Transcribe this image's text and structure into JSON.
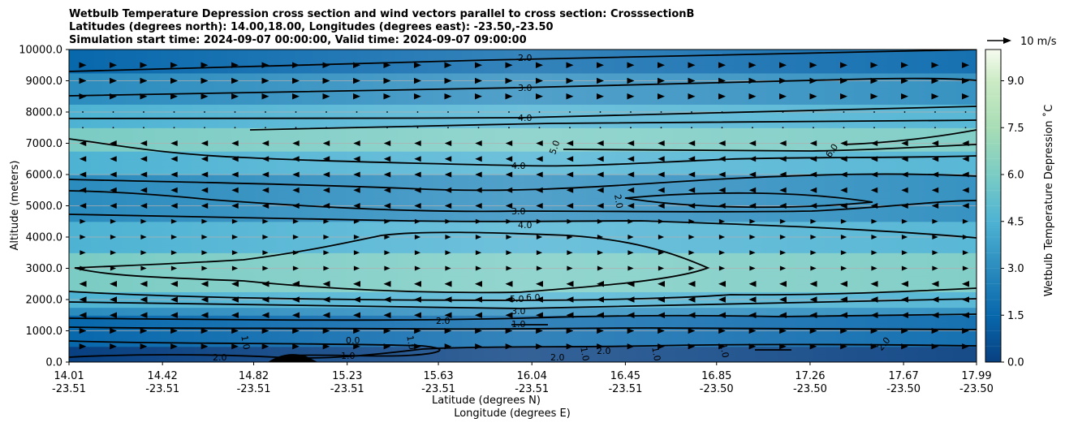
{
  "chart_data": {
    "type": "heatmap",
    "title_lines": [
      "Wetbulb Temperature Depression cross section and wind vectors parallel to cross section: CrosssectionB",
      "Latitudes (degrees north): 14.00,18.00, Longitudes (degrees east): -23.50,-23.50",
      "Simulation start time: 2024-09-07 00:00:00, Valid time: 2024-09-07 09:00:00"
    ],
    "ylabel": "Altitude (meters)",
    "xlabel_lines": [
      "Latitude (degrees N)",
      "Longitude (degrees E)"
    ],
    "colorbar_label": "Wetbulb Temperature Depression ˚C",
    "quiver_key_label": "10 m/s",
    "ylim": [
      0,
      10000
    ],
    "yticks": [
      "0.0",
      "1000.0",
      "2000.0",
      "3000.0",
      "4000.0",
      "5000.0",
      "6000.0",
      "7000.0",
      "8000.0",
      "9000.0",
      "10000.0"
    ],
    "xtick_lat": [
      "14.01",
      "14.42",
      "14.82",
      "15.23",
      "15.63",
      "16.04",
      "16.45",
      "16.85",
      "17.26",
      "17.67",
      "17.99"
    ],
    "xtick_lon": [
      "-23.51",
      "-23.51",
      "-23.51",
      "-23.51",
      "-23.51",
      "-23.51",
      "-23.51",
      "-23.50",
      "-23.50",
      "-23.50",
      "-23.50"
    ],
    "colorbar_range": [
      0,
      10
    ],
    "colorbar_ticks": [
      "0.0",
      "1.5",
      "3.0",
      "4.5",
      "6.0",
      "7.5",
      "9.0"
    ],
    "contour_labels": [
      "2.0",
      "3.0",
      "4.0",
      "4.0",
      "5.0",
      "6.0",
      "2.0",
      "3.0",
      "4.0",
      "5.0",
      "6.0",
      "3.0",
      "2.0",
      "1.0",
      "0.0",
      "1.0",
      "1.0",
      "2.0",
      "1.0",
      "2.0",
      "1.0",
      "1.0",
      "2.0",
      "1.0",
      "2.0"
    ],
    "profile": [
      {
        "altitude": 0,
        "value": 1.0
      },
      {
        "altitude": 1000,
        "value": 1.5
      },
      {
        "altitude": 1500,
        "value": 2.5
      },
      {
        "altitude": 2000,
        "value": 4.5
      },
      {
        "altitude": 3000,
        "value": 5.5
      },
      {
        "altitude": 4000,
        "value": 4.3
      },
      {
        "altitude": 5000,
        "value": 2.5
      },
      {
        "altitude": 6000,
        "value": 3.5
      },
      {
        "altitude": 7000,
        "value": 5.5
      },
      {
        "altitude": 8000,
        "value": 4.0
      },
      {
        "altitude": 9000,
        "value": 2.5
      },
      {
        "altitude": 10000,
        "value": 1.8
      }
    ],
    "grid": "horizontal"
  }
}
